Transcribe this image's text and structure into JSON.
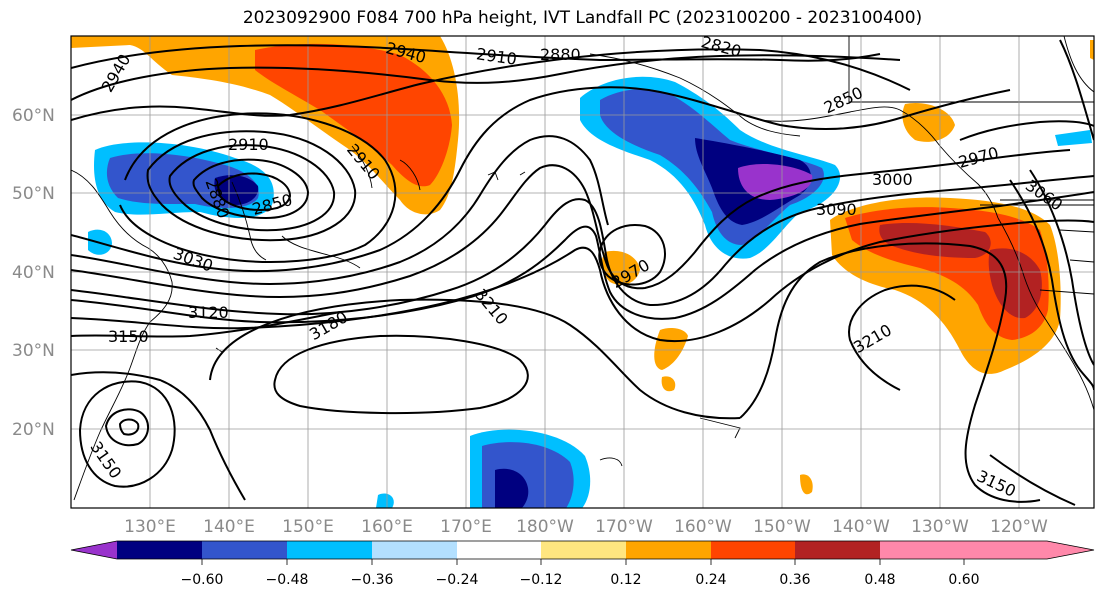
{
  "title": "2023092900 F084 700 hPa height, IVT Landfall PC (2023100200 - 2023100400)",
  "latitude_labels": [
    "60°N",
    "50°N",
    "40°N",
    "30°N",
    "20°N"
  ],
  "longitude_labels": [
    "130°E",
    "140°E",
    "150°E",
    "160°E",
    "170°E",
    "180°W",
    "170°W",
    "160°W",
    "150°W",
    "140°W",
    "130°W",
    "120°W"
  ],
  "contour_labels": [
    "2940",
    "2940",
    "2910",
    "2880",
    "2820",
    "2850",
    "2910",
    "2910",
    "2880",
    "2850",
    "2970",
    "3000",
    "3060",
    "3090",
    "2970",
    "3030",
    "3120",
    "3150",
    "3180",
    "3210",
    "3210",
    "3150",
    "3150"
  ],
  "colorbar": {
    "tick_labels": [
      "−0.60",
      "−0.48",
      "−0.36",
      "−0.24",
      "−0.12",
      "0.12",
      "0.24",
      "0.36",
      "0.48",
      "0.60"
    ],
    "colors": [
      "#9933cc",
      "#000080",
      "#3355cc",
      "#00bfff",
      "#b3e0ff",
      "#ffffff",
      "#ffe680",
      "#ffa500",
      "#ff4500",
      "#b22222",
      "#ff88aa"
    ]
  },
  "shading_colors": {
    "neg1": "#00bfff",
    "neg2": "#3355cc",
    "neg3": "#000080",
    "neg4": "#9933cc",
    "pos1": "#ffe680",
    "pos2": "#ffa500",
    "pos3": "#ff4500",
    "pos4": "#b22222"
  }
}
